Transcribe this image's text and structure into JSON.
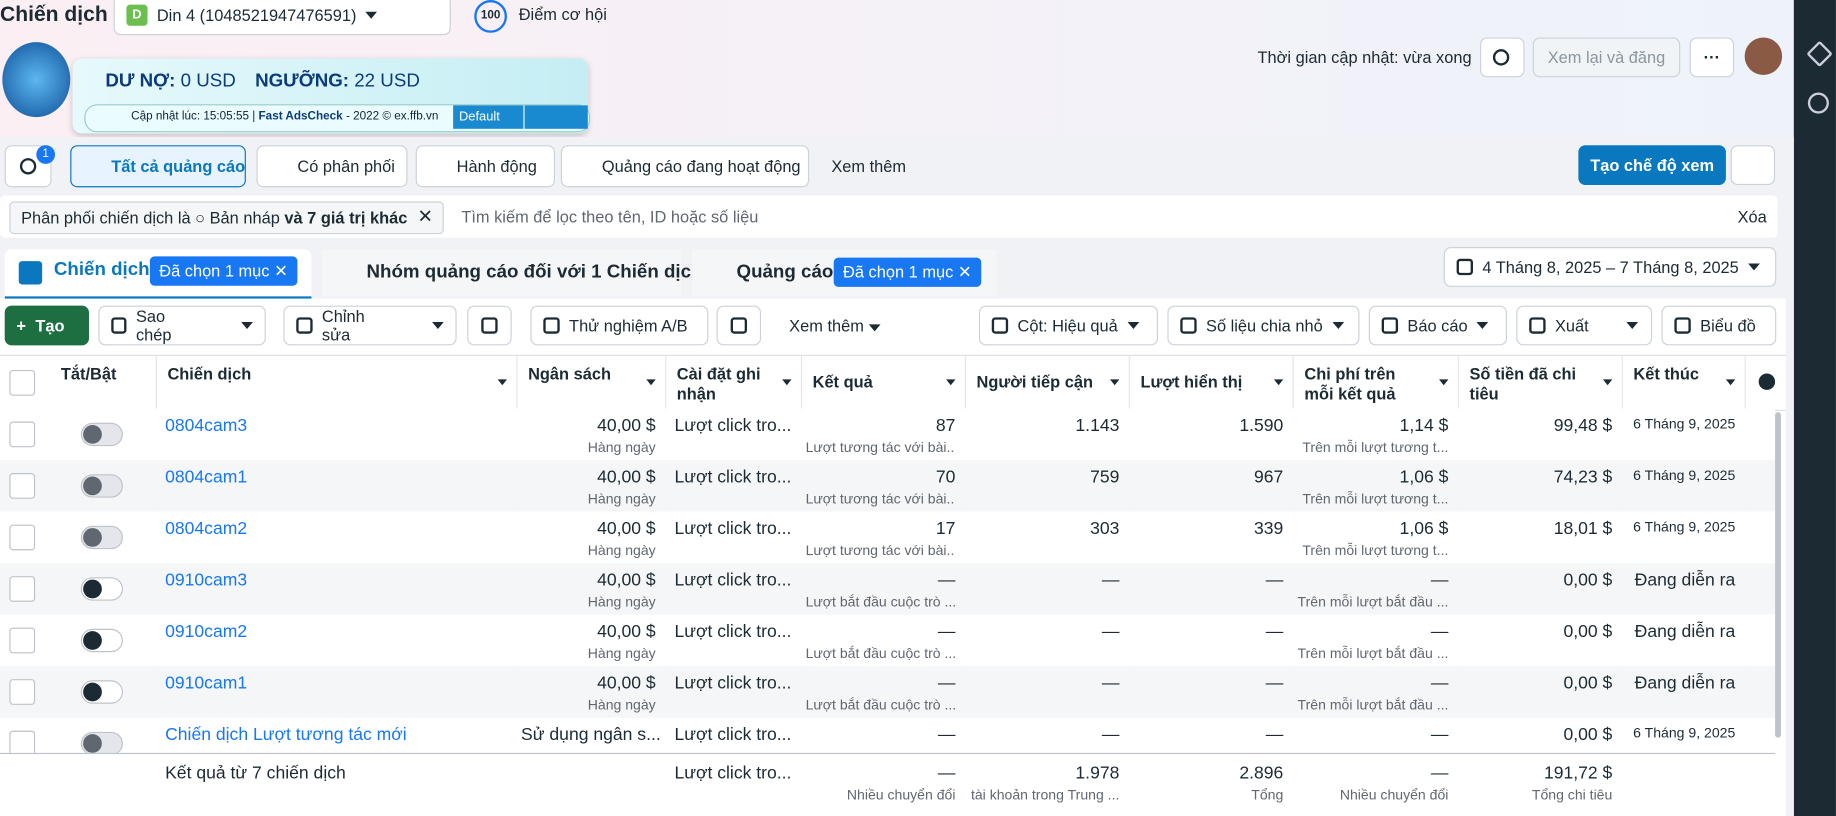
{
  "header": {
    "title": "Chiến dịch",
    "account_badge": "D",
    "account": "Din 4 (1048521947476591)",
    "score": "100",
    "score_label": "Điểm cơ hội",
    "update_time": "Thời gian cập nhật: vừa xong",
    "review_button": "Xem lại và đăng"
  },
  "extension": {
    "debt_label": "DƯ NỢ:",
    "debt": "0 USD",
    "threshold_label": "NGƯỠNG:",
    "threshold": "22 USD",
    "updated": "Cập nhật lúc: 15:05:55 |",
    "brand": "Fast AdsCheck",
    "footer": "- 2022 © ex.ffb.vn",
    "mode": "Default"
  },
  "filters": {
    "search_badge": "1",
    "tabs": [
      "Tất cả quảng cáo",
      "Có phân phối",
      "Hành động",
      "Quảng cáo đang hoạt động",
      "Xem thêm"
    ],
    "create_view": "Tạo chế độ xem"
  },
  "filter_bar": {
    "chip": "Phân phối chiến dịch là",
    "chip_value": "Bản nháp",
    "chip_more": "và 7 giá trị khác",
    "search_placeholder": "Tìm kiếm để lọc theo tên, ID hoặc số liệu",
    "clear": "Xóa"
  },
  "level_tabs": {
    "campaigns": "Chiến dịch",
    "campaigns_selected": "Đã chọn 1 mục",
    "adsets": "Nhóm quảng cáo đối với 1 Chiến dịch",
    "ads": "Quảng cáo",
    "ads_selected": "Đã chọn 1 mục",
    "date_range": "4 Tháng 8, 2025 – 7 Tháng 8, 2025"
  },
  "toolbar": {
    "create": "Tạo",
    "copy": "Sao chép",
    "edit": "Chỉnh sửa",
    "ab_test": "Thử nghiệm A/B",
    "more": "Xem thêm",
    "columns": "Cột: Hiệu quả",
    "breakdown": "Số liệu chia nhỏ",
    "reports": "Báo cáo",
    "export": "Xuất",
    "charts": "Biểu đồ"
  },
  "table": {
    "columns": [
      "Tắt/Bật",
      "Chiến dịch",
      "Ngân sách",
      "Cài đặt ghi nhận",
      "Kết quả",
      "Người tiếp cận",
      "Lượt hiển thị",
      "Chi phí trên mỗi kết quả",
      "Số tiền đã chi tiêu",
      "Kết thúc"
    ],
    "rows": [
      {
        "enabled": false,
        "name": "0804cam3",
        "budget": "40,00 $",
        "budget_sub": "Hàng ngày",
        "attribution": "Lượt click tro...",
        "result": "87",
        "result_sub": "Lượt tương tác với bài...",
        "reach": "1.143",
        "impressions": "1.590",
        "cpr": "1,14 $",
        "cpr_sub": "Trên mỗi lượt tương t...",
        "spent": "99,48 $",
        "end": "6 Tháng 9, 2025"
      },
      {
        "enabled": false,
        "name": "0804cam1",
        "budget": "40,00 $",
        "budget_sub": "Hàng ngày",
        "attribution": "Lượt click tro...",
        "result": "70",
        "result_sub": "Lượt tương tác với bài...",
        "reach": "759",
        "impressions": "967",
        "cpr": "1,06 $",
        "cpr_sub": "Trên mỗi lượt tương t...",
        "spent": "74,23 $",
        "end": "6 Tháng 9, 2025"
      },
      {
        "enabled": false,
        "name": "0804cam2",
        "budget": "40,00 $",
        "budget_sub": "Hàng ngày",
        "attribution": "Lượt click tro...",
        "result": "17",
        "result_sub": "Lượt tương tác với bài...",
        "reach": "303",
        "impressions": "339",
        "cpr": "1,06 $",
        "cpr_sub": "Trên mỗi lượt tương t...",
        "spent": "18,01 $",
        "end": "6 Tháng 9, 2025"
      },
      {
        "enabled": true,
        "name": "0910cam3",
        "budget": "40,00 $",
        "budget_sub": "Hàng ngày",
        "attribution": "Lượt click tro...",
        "result": "—",
        "result_sub": "Lượt bắt đầu cuộc trò ...",
        "reach": "—",
        "impressions": "—",
        "cpr": "—",
        "cpr_sub": "Trên mỗi lượt bắt đầu ...",
        "spent": "0,00 $",
        "end": "Đang diễn ra"
      },
      {
        "enabled": true,
        "name": "0910cam2",
        "budget": "40,00 $",
        "budget_sub": "Hàng ngày",
        "attribution": "Lượt click tro...",
        "result": "—",
        "result_sub": "Lượt bắt đầu cuộc trò ...",
        "reach": "—",
        "impressions": "—",
        "cpr": "—",
        "cpr_sub": "Trên mỗi lượt bắt đầu ...",
        "spent": "0,00 $",
        "end": "Đang diễn ra"
      },
      {
        "enabled": true,
        "name": "0910cam1",
        "budget": "40,00 $",
        "budget_sub": "Hàng ngày",
        "attribution": "Lượt click tro...",
        "result": "—",
        "result_sub": "Lượt bắt đầu cuộc trò ...",
        "reach": "—",
        "impressions": "—",
        "cpr": "—",
        "cpr_sub": "Trên mỗi lượt bắt đầu ...",
        "spent": "0,00 $",
        "end": "Đang diễn ra"
      },
      {
        "enabled": false,
        "name": "Chiến dịch Lượt tương tác mới",
        "budget": "Sử dụng ngân s...",
        "attribution": "Lượt click tro...",
        "result": "—",
        "reach": "—",
        "impressions": "—",
        "cpr": "—",
        "spent": "0,00 $",
        "end": "6 Tháng 9, 2025"
      }
    ],
    "footer": {
      "name": "Kết quả từ 7 chiến dịch",
      "attribution": "Lượt click tro...",
      "result": "—",
      "result_sub": "Nhiều chuyển đổi",
      "reach": "1.978",
      "reach_sub": "tài khoản trong Trung ...",
      "impressions": "2.896",
      "impressions_sub": "Tổng",
      "cpr": "—",
      "cpr_sub": "Nhiều chuyển đổi",
      "spent": "191,72 $",
      "spent_sub": "Tổng chi tiêu"
    }
  }
}
